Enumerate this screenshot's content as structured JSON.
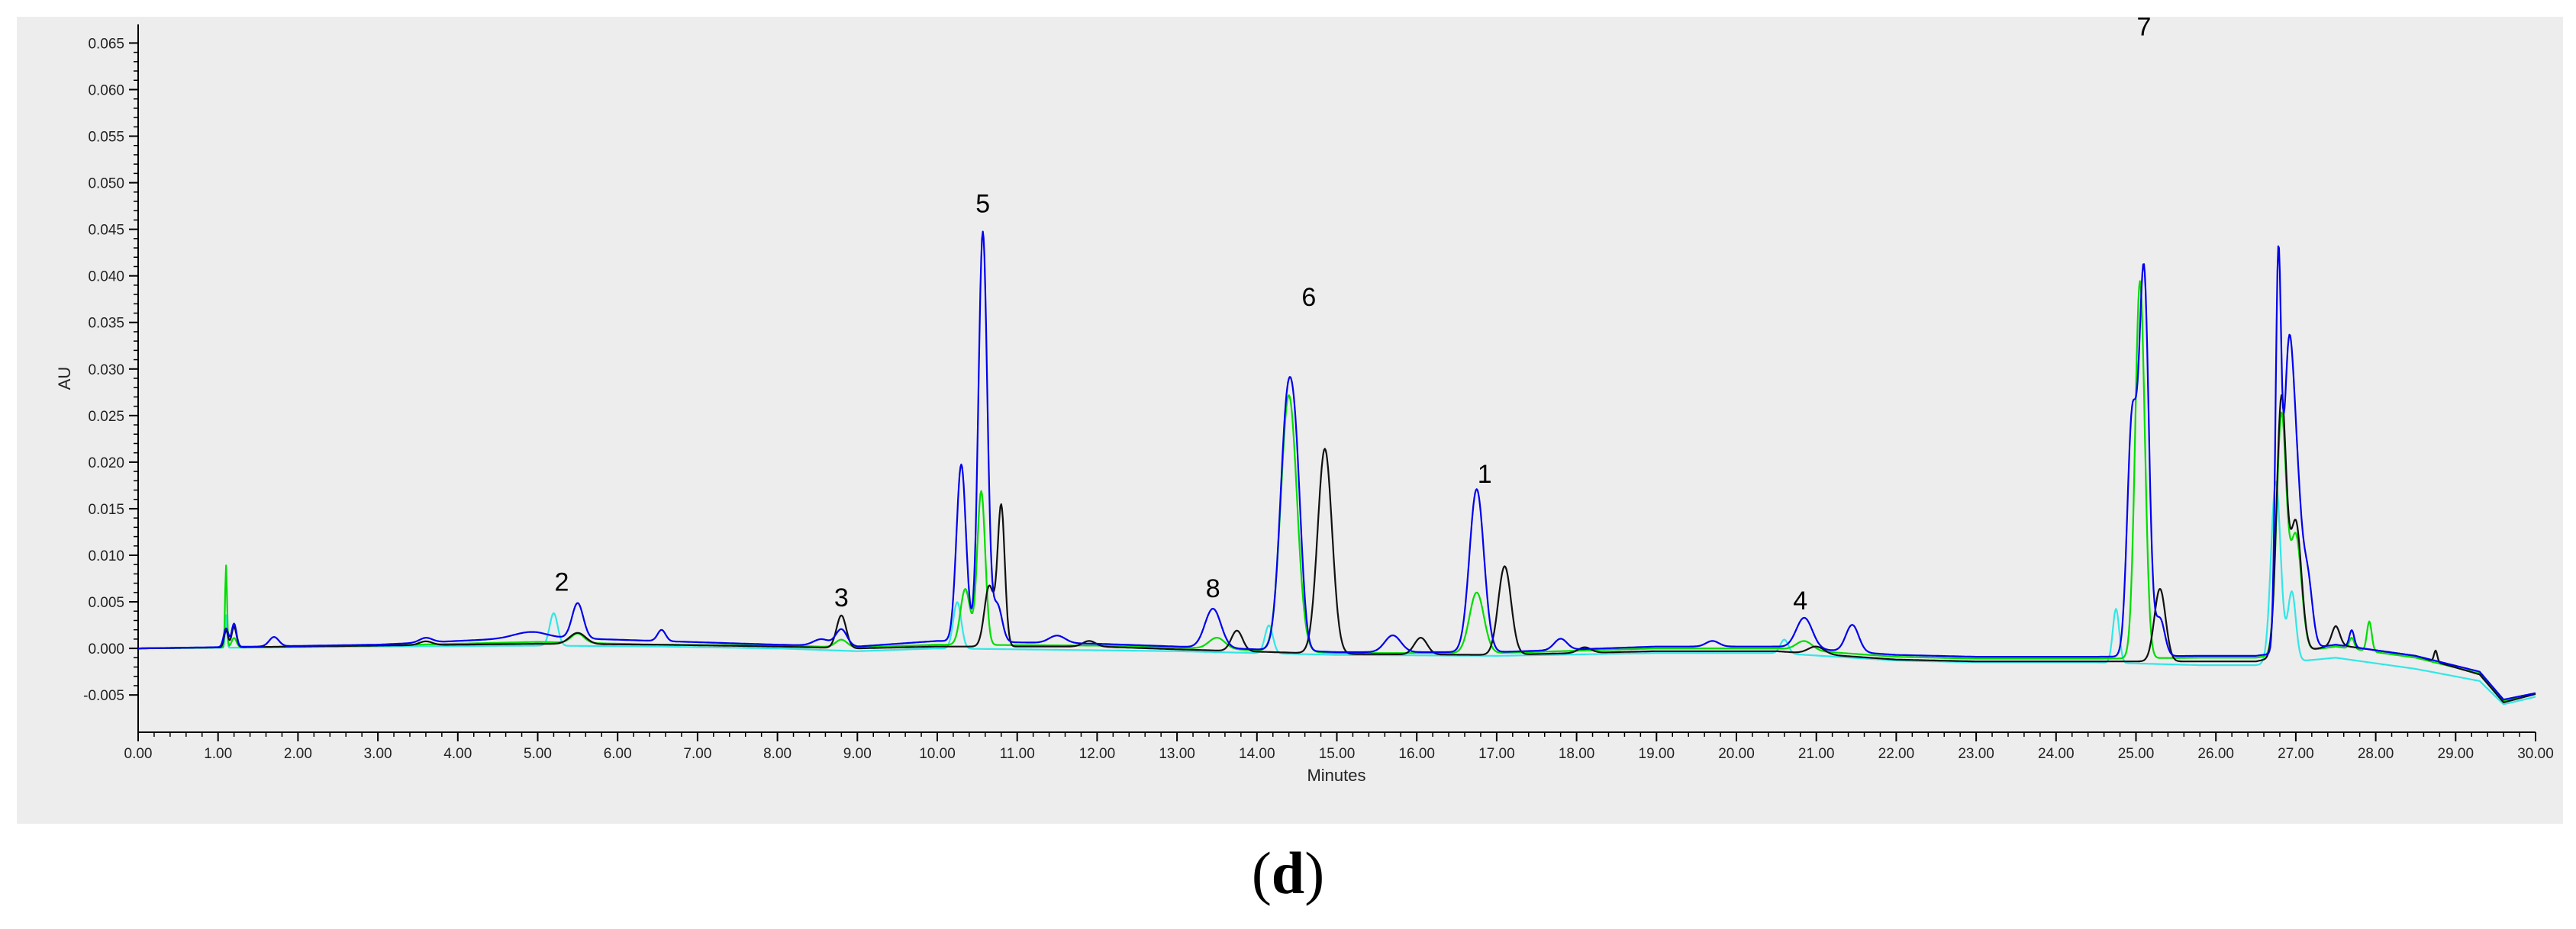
{
  "chart_data": {
    "type": "line",
    "xlabel": "Minutes",
    "ylabel": "AU",
    "xlim": [
      0,
      30
    ],
    "ylim": [
      -0.009,
      0.067
    ],
    "x_ticks": [
      0,
      1,
      2,
      3,
      4,
      5,
      6,
      7,
      8,
      9,
      10,
      11,
      12,
      13,
      14,
      15,
      16,
      17,
      18,
      19,
      20,
      21,
      22,
      23,
      24,
      25,
      26,
      27,
      28,
      29,
      30
    ],
    "x_tick_labels": [
      "0.00",
      "1.00",
      "2.00",
      "3.00",
      "4.00",
      "5.00",
      "6.00",
      "7.00",
      "8.00",
      "9.00",
      "10.00",
      "11.00",
      "12.00",
      "13.00",
      "14.00",
      "15.00",
      "16.00",
      "17.00",
      "18.00",
      "19.00",
      "20.00",
      "21.00",
      "22.00",
      "23.00",
      "24.00",
      "25.00",
      "26.00",
      "27.00",
      "28.00",
      "29.00",
      "30.00"
    ],
    "y_ticks": [
      -0.005,
      0,
      0.005,
      0.01,
      0.015,
      0.02,
      0.025,
      0.03,
      0.035,
      0.04,
      0.045,
      0.05,
      0.055,
      0.06,
      0.065
    ],
    "y_tick_labels": [
      "-0.005",
      "0.000",
      "0.005",
      "0.010",
      "0.015",
      "0.020",
      "0.025",
      "0.030",
      "0.035",
      "0.040",
      "0.045",
      "0.050",
      "0.055",
      "0.060",
      "0.065"
    ],
    "grid": false,
    "background": "#ededed",
    "series": [
      {
        "color": "#0000ee",
        "baseline": [
          [
            0,
            0
          ],
          [
            3,
            0.0004
          ],
          [
            5,
            0.0012
          ],
          [
            6.5,
            0.0008
          ],
          [
            8,
            0.0004
          ],
          [
            9,
            0.0002
          ],
          [
            10,
            0.0008
          ],
          [
            12,
            0.0005
          ],
          [
            13,
            0.0002
          ],
          [
            15,
            -0.0004
          ],
          [
            17,
            -0.0004
          ],
          [
            19,
            0.0002
          ],
          [
            20.5,
            0.0002
          ],
          [
            22,
            -0.0007
          ],
          [
            23,
            -0.0009
          ],
          [
            24.5,
            -0.0009
          ],
          [
            25.8,
            -0.0008
          ],
          [
            26.5,
            -0.0008
          ],
          [
            27.5,
            0.0004
          ],
          [
            28.5,
            -0.0008
          ],
          [
            29.3,
            -0.0025
          ],
          [
            29.6,
            -0.0055
          ],
          [
            30,
            -0.0048
          ]
        ],
        "peaks": [
          [
            1.1,
            0.002,
            0.03
          ],
          [
            1.2,
            0.0025,
            0.03
          ],
          [
            1.7,
            0.001,
            0.06
          ],
          [
            3.6,
            0.0005,
            0.08
          ],
          [
            4.9,
            0.0006,
            0.2
          ],
          [
            5.5,
            0.0038,
            0.07
          ],
          [
            6.55,
            0.0012,
            0.05
          ],
          [
            8.55,
            0.0007,
            0.1
          ],
          [
            8.8,
            0.0018,
            0.07
          ],
          [
            10.3,
            0.019,
            0.06
          ],
          [
            10.57,
            0.044,
            0.055
          ],
          [
            10.75,
            0.004,
            0.06
          ],
          [
            11.5,
            0.0008,
            0.1
          ],
          [
            13.45,
            0.0042,
            0.1
          ],
          [
            14.38,
            0.0255,
            0.09
          ],
          [
            14.5,
            0.012,
            0.07
          ],
          [
            15.7,
            0.0018,
            0.1
          ],
          [
            16.75,
            0.0175,
            0.09
          ],
          [
            17.8,
            0.0012,
            0.08
          ],
          [
            19.7,
            0.0006,
            0.08
          ],
          [
            20.85,
            0.0033,
            0.1
          ],
          [
            21.45,
            0.0029,
            0.08
          ],
          [
            24.95,
            0.025,
            0.06
          ],
          [
            25.1,
            0.041,
            0.06
          ],
          [
            25.3,
            0.004,
            0.06
          ],
          [
            26.78,
            0.04,
            0.035
          ],
          [
            26.9,
            0.026,
            0.06
          ],
          [
            27.0,
            0.018,
            0.07
          ],
          [
            27.15,
            0.007,
            0.06
          ],
          [
            27.7,
            0.0018,
            0.03
          ]
        ]
      },
      {
        "color": "#00dd00",
        "baseline": [
          [
            0,
            0
          ],
          [
            3,
            0.0003
          ],
          [
            5,
            0.0007
          ],
          [
            6.5,
            0.0004
          ],
          [
            8,
            0.0003
          ],
          [
            9,
            0.0001
          ],
          [
            10,
            0.0004
          ],
          [
            12,
            0.0003
          ],
          [
            13,
            0.0001
          ],
          [
            15,
            -0.0005
          ],
          [
            17,
            -0.0005
          ],
          [
            19,
            0
          ],
          [
            20.5,
            0
          ],
          [
            22,
            -0.0009
          ],
          [
            23,
            -0.0011
          ],
          [
            24.5,
            -0.0011
          ],
          [
            25.8,
            -0.001
          ],
          [
            26.5,
            -0.001
          ],
          [
            27.5,
            0.0002
          ],
          [
            28.5,
            -0.001
          ],
          [
            29.3,
            -0.0027
          ],
          [
            29.6,
            -0.0056
          ],
          [
            30,
            -0.0049
          ]
        ],
        "peaks": [
          [
            1.1,
            0.0088,
            0.012
          ],
          [
            1.2,
            0.001,
            0.03
          ],
          [
            5.5,
            0.001,
            0.08
          ],
          [
            8.8,
            0.0008,
            0.07
          ],
          [
            10.35,
            0.006,
            0.06
          ],
          [
            10.55,
            0.0165,
            0.05
          ],
          [
            13.5,
            0.0012,
            0.1
          ],
          [
            14.4,
            0.0275,
            0.1
          ],
          [
            16.75,
            0.0065,
            0.09
          ],
          [
            20.85,
            0.001,
            0.1
          ],
          [
            25.05,
            0.0405,
            0.06
          ],
          [
            26.82,
            0.0255,
            0.06
          ],
          [
            27.0,
            0.0125,
            0.07
          ],
          [
            27.92,
            0.0032,
            0.03
          ],
          [
            27.7,
            0.0012,
            0.03
          ]
        ]
      },
      {
        "color": "#33e6e6",
        "baseline": [
          [
            0,
            0
          ],
          [
            3,
            0.0002
          ],
          [
            5,
            0.0003
          ],
          [
            6.5,
            0.0002
          ],
          [
            8,
            0
          ],
          [
            9,
            -0.0003
          ],
          [
            10,
            0
          ],
          [
            12,
            -0.0002
          ],
          [
            13,
            -0.0003
          ],
          [
            15,
            -0.0007
          ],
          [
            17,
            -0.0008
          ],
          [
            19,
            -0.0005
          ],
          [
            20.5,
            -0.0005
          ],
          [
            22,
            -0.0013
          ],
          [
            23,
            -0.0015
          ],
          [
            24.5,
            -0.0015
          ],
          [
            25.8,
            -0.0018
          ],
          [
            26.5,
            -0.0018
          ],
          [
            27.5,
            -0.001
          ],
          [
            28.5,
            -0.0022
          ],
          [
            29.3,
            -0.0035
          ],
          [
            29.6,
            -0.006
          ],
          [
            30,
            -0.0052
          ]
        ],
        "peaks": [
          [
            1.1,
            0.0035,
            0.012
          ],
          [
            5.2,
            0.0035,
            0.05
          ],
          [
            10.25,
            0.005,
            0.05
          ],
          [
            14.15,
            0.003,
            0.05
          ],
          [
            20.6,
            0.0015,
            0.05
          ],
          [
            24.75,
            0.0058,
            0.04
          ],
          [
            26.75,
            0.0195,
            0.06
          ],
          [
            26.95,
            0.0075,
            0.05
          ]
        ]
      },
      {
        "color": "#111111",
        "baseline": [
          [
            0,
            0
          ],
          [
            3,
            0.0003
          ],
          [
            5,
            0.0005
          ],
          [
            6.5,
            0.0004
          ],
          [
            8,
            0.0002
          ],
          [
            9,
            0
          ],
          [
            10,
            0.0002
          ],
          [
            12,
            0.0002
          ],
          [
            13,
            -0.0001
          ],
          [
            15,
            -0.0006
          ],
          [
            17,
            -0.0007
          ],
          [
            19,
            -0.0003
          ],
          [
            20.5,
            -0.0003
          ],
          [
            22,
            -0.0012
          ],
          [
            23,
            -0.0014
          ],
          [
            24.5,
            -0.0014
          ],
          [
            25.8,
            -0.0014
          ],
          [
            26.5,
            -0.0014
          ],
          [
            27.5,
            0.0004
          ],
          [
            28.5,
            -0.0008
          ],
          [
            29.3,
            -0.0028
          ],
          [
            29.6,
            -0.0058
          ],
          [
            30,
            -0.0049
          ]
        ],
        "peaks": [
          [
            1.1,
            0.0018,
            0.025
          ],
          [
            1.2,
            0.0022,
            0.03
          ],
          [
            3.6,
            0.0004,
            0.08
          ],
          [
            5.5,
            0.0012,
            0.1
          ],
          [
            8.8,
            0.0035,
            0.06
          ],
          [
            10.65,
            0.0065,
            0.06
          ],
          [
            10.8,
            0.015,
            0.045
          ],
          [
            11.9,
            0.0006,
            0.08
          ],
          [
            13.75,
            0.0022,
            0.07
          ],
          [
            14.85,
            0.022,
            0.09
          ],
          [
            16.05,
            0.0018,
            0.08
          ],
          [
            17.1,
            0.0095,
            0.08
          ],
          [
            18.1,
            0.0006,
            0.08
          ],
          [
            21.0,
            0.0008,
            0.1
          ],
          [
            25.3,
            0.0078,
            0.07
          ],
          [
            26.82,
            0.0275,
            0.06
          ],
          [
            27.0,
            0.014,
            0.07
          ],
          [
            27.5,
            0.002,
            0.05
          ],
          [
            28.75,
            0.0012,
            0.02
          ]
        ]
      }
    ],
    "annotations": [
      {
        "text": "2",
        "x": 5.3,
        "y": 0.0062
      },
      {
        "text": "3",
        "x": 8.8,
        "y": 0.0045
      },
      {
        "text": "5",
        "x": 10.57,
        "y": 0.0468
      },
      {
        "text": "8",
        "x": 13.45,
        "y": 0.0055
      },
      {
        "text": "6",
        "x": 14.65,
        "y": 0.0368
      },
      {
        "text": "1",
        "x": 16.85,
        "y": 0.0178
      },
      {
        "text": "4",
        "x": 20.8,
        "y": 0.0042
      },
      {
        "text": "7",
        "x": 25.1,
        "y": 0.0658
      }
    ]
  },
  "caption": {
    "open": "(",
    "letter": "d",
    "close": ")"
  }
}
